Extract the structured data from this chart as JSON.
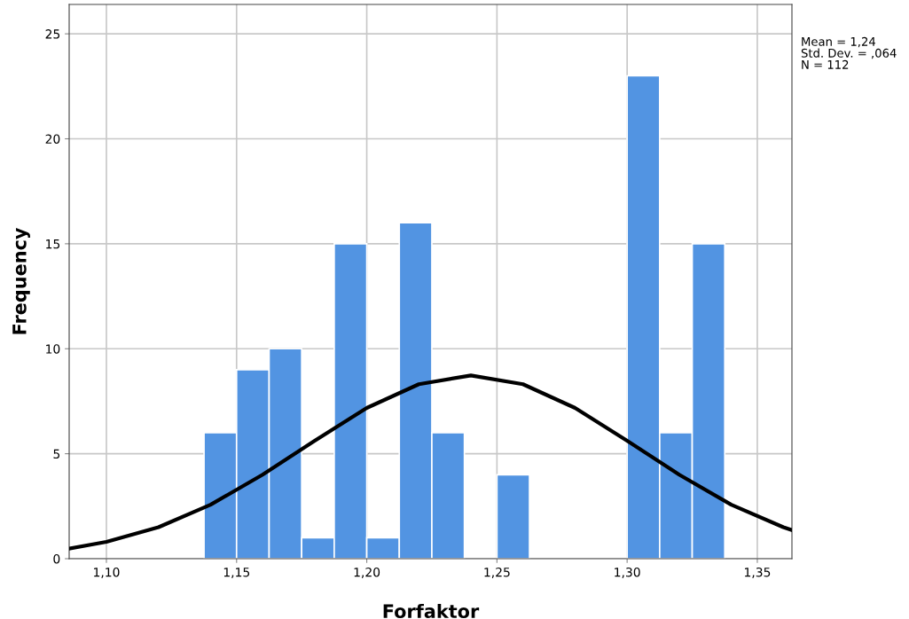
{
  "chart_data": {
    "type": "histogram",
    "xlabel": "Forfaktor",
    "ylabel": "Frequency",
    "bins": [
      1.1375,
      1.15,
      1.1625,
      1.175,
      1.1875,
      1.2,
      1.2125,
      1.225,
      1.2375,
      1.25,
      1.2625,
      1.275,
      1.2875,
      1.3,
      1.3125,
      1.325,
      1.3375
    ],
    "values": [
      6,
      9,
      10,
      1,
      15,
      1,
      16,
      6,
      0,
      4,
      0,
      0,
      0,
      23,
      6,
      15
    ],
    "color": "#5294e2",
    "series": [
      {
        "type": "line",
        "color": "#000000",
        "x": [
          1.0857,
          1.1,
          1.12,
          1.14,
          1.16,
          1.18,
          1.2,
          1.22,
          1.24,
          1.26,
          1.28,
          1.3,
          1.32,
          1.34,
          1.36,
          1.3633
        ],
        "values": [
          0.48,
          0.8,
          1.5,
          2.57,
          4.0,
          5.62,
          7.18,
          8.31,
          8.73,
          8.31,
          7.18,
          5.62,
          4.0,
          2.57,
          1.5,
          1.36
        ]
      }
    ],
    "xlim": [
      1.0857,
      1.3633
    ],
    "ylim": [
      0,
      26.4
    ],
    "xticks": [
      {
        "value": 1.1,
        "label": "1,10"
      },
      {
        "value": 1.15,
        "label": "1,15"
      },
      {
        "value": 1.2,
        "label": "1,20"
      },
      {
        "value": 1.25,
        "label": "1,25"
      },
      {
        "value": 1.3,
        "label": "1,30"
      },
      {
        "value": 1.35,
        "label": "1,35"
      }
    ],
    "yticks": [
      0,
      5,
      10,
      15,
      20,
      25
    ],
    "grid": true,
    "annotations": [
      "Mean = 1,24",
      "Std. Dev. = ,064",
      "N = 112"
    ]
  }
}
